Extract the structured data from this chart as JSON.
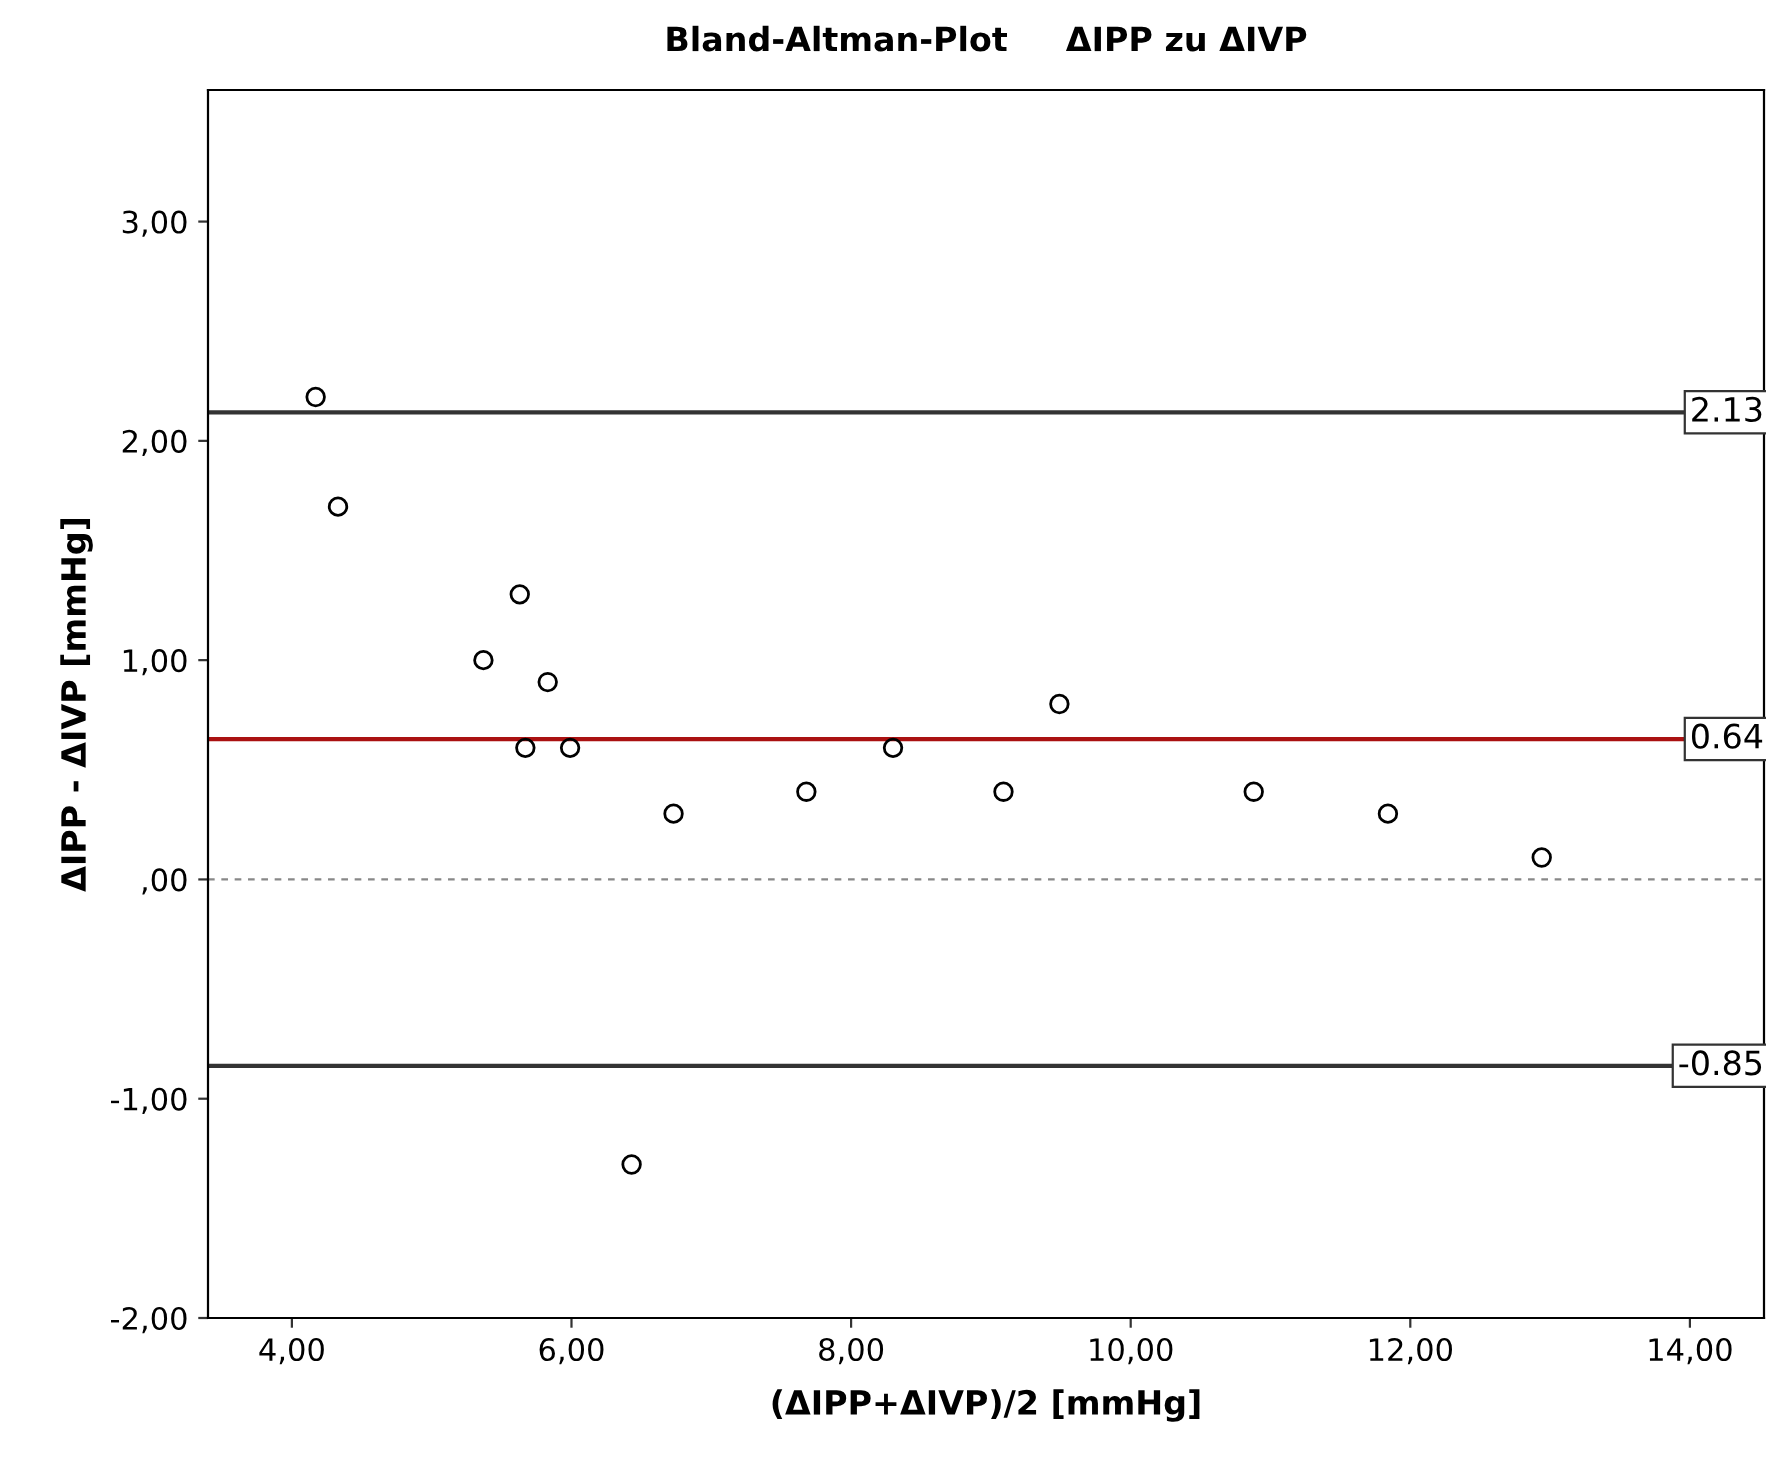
{
  "chart_data": {
    "type": "scatter",
    "title": "Bland-Altman-Plot     ΔIPP zu ΔIVP",
    "xlabel": "(ΔIPP+ΔIVP)/2 [mmHg]",
    "ylabel": "ΔIPP - ΔIVP [mmHg]",
    "series": [
      {
        "color": "#000000",
        "x": [
          4.17,
          4.33,
          5.37,
          5.63,
          5.67,
          5.83,
          5.99,
          6.43,
          6.73,
          7.68,
          8.3,
          9.09,
          9.49,
          10.88,
          11.84,
          12.94
        ],
        "values": [
          2.2,
          1.7,
          1.0,
          1.3,
          0.6,
          0.9,
          0.6,
          -1.3,
          0.3,
          0.4,
          0.6,
          0.4,
          0.8,
          0.4,
          0.3,
          0.1
        ]
      }
    ],
    "marker": "circle",
    "grid": false,
    "xlim": [
      3.4,
      14.53
    ],
    "ylim": [
      -2.0,
      3.6
    ],
    "xticks": [
      {
        "value": 4,
        "label": "4,00"
      },
      {
        "value": 6,
        "label": "6,00"
      },
      {
        "value": 8,
        "label": "8,00"
      },
      {
        "value": 10,
        "label": "10,00"
      },
      {
        "value": 12,
        "label": "12,00"
      },
      {
        "value": 14,
        "label": "14,00"
      }
    ],
    "yticks": [
      {
        "value": -2,
        "label": "-2,00"
      },
      {
        "value": -1,
        "label": "-1,00"
      },
      {
        "value": 0,
        "label": ",00"
      },
      {
        "value": 1,
        "label": "1,00"
      },
      {
        "value": 2,
        "label": "2,00"
      },
      {
        "value": 3,
        "label": "3,00"
      }
    ],
    "ref_lines": [
      {
        "axis": "y",
        "value": 2.13,
        "label": "2.13",
        "color": "#333333",
        "line_style": "solid"
      },
      {
        "axis": "y",
        "value": 0.64,
        "label": "0.64",
        "color": "#aa1111",
        "line_style": "solid"
      },
      {
        "axis": "y",
        "value": -0.85,
        "label": "-0.85",
        "color": "#333333",
        "line_style": "solid"
      },
      {
        "axis": "y",
        "value": 0,
        "color": "#888888",
        "line_style": "dashed"
      }
    ]
  }
}
